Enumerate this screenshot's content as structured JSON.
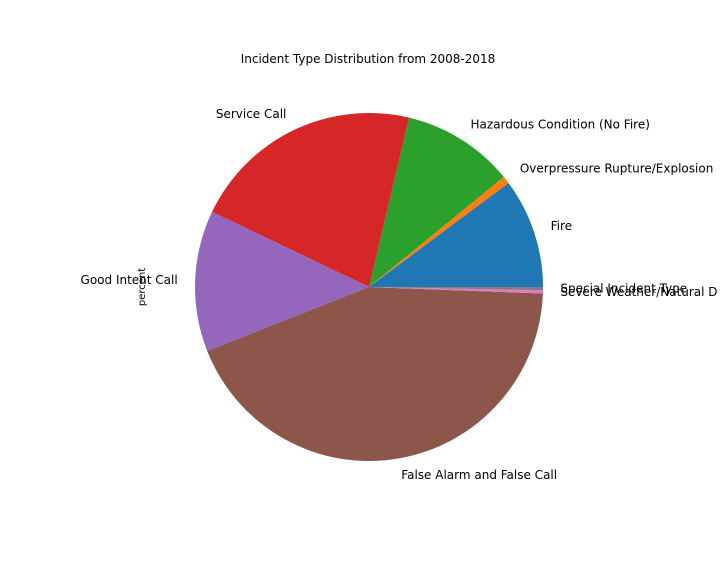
{
  "chart_data": {
    "type": "pie",
    "title": "Incident Type Distribution from 2008-2018",
    "ylabel": "percent",
    "start_angle_deg": 0,
    "direction": "counterclockwise",
    "slices": [
      {
        "label": "Fire",
        "value": 10.2,
        "color": "#1f77b4"
      },
      {
        "label": "Overpressure Rupture/Explosion",
        "value": 0.7,
        "color": "#ff7f0e"
      },
      {
        "label": "Hazardous Condition (No Fire)",
        "value": 10.4,
        "color": "#2ca02c"
      },
      {
        "label": "Service Call",
        "value": 21.6,
        "color": "#d62728"
      },
      {
        "label": "Good Intent Call",
        "value": 13.1,
        "color": "#9467bd"
      },
      {
        "label": "False Alarm and False Call",
        "value": 43.4,
        "color": "#8c564b"
      },
      {
        "label": "Severe Weather/Natural D",
        "value": 0.3,
        "color": "#e377c2"
      },
      {
        "label": "Special Incident Type",
        "value": 0.3,
        "color": "#7f7f7f"
      }
    ]
  }
}
